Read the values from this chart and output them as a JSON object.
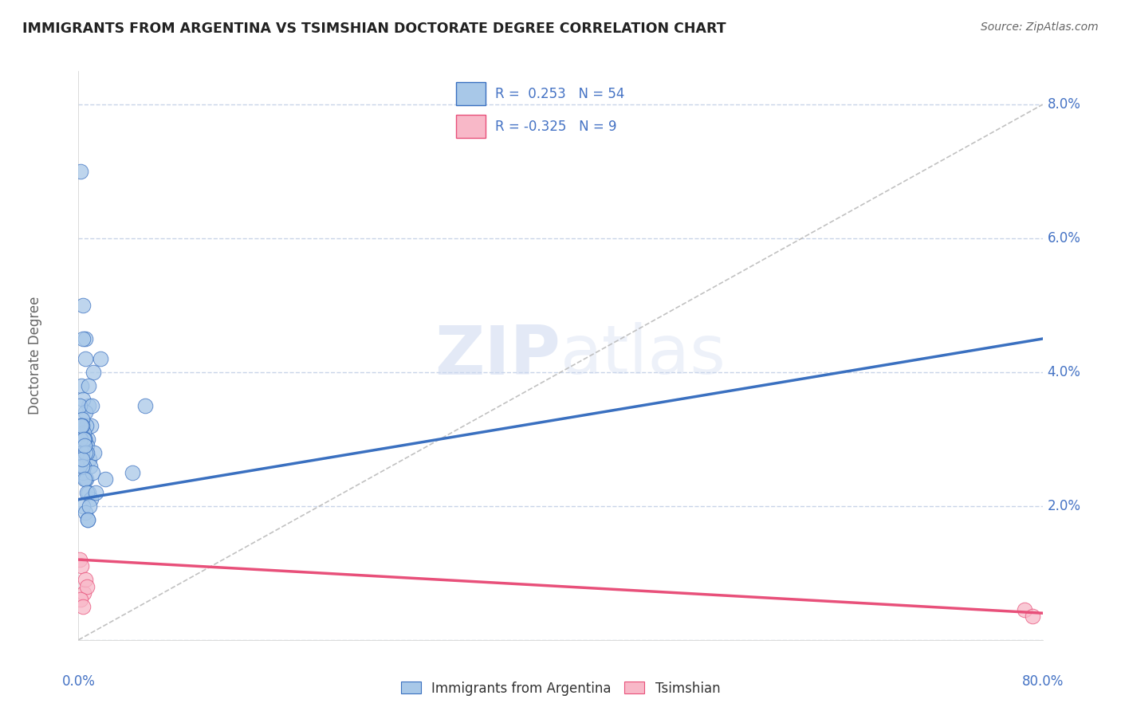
{
  "title": "IMMIGRANTS FROM ARGENTINA VS TSIMSHIAN DOCTORATE DEGREE CORRELATION CHART",
  "source": "Source: ZipAtlas.com",
  "ylabel": "Doctorate Degree",
  "legend_label1": "Immigrants from Argentina",
  "legend_label2": "Tsimshian",
  "R1": 0.253,
  "N1": 54,
  "R2": -0.325,
  "N2": 9,
  "blue_color": "#a8c8e8",
  "blue_line_color": "#3a70c0",
  "pink_color": "#f8b8c8",
  "pink_line_color": "#e8507a",
  "blue_dots_x": [
    0.15,
    0.4,
    0.6,
    0.8,
    1.0,
    0.25,
    0.35,
    0.55,
    0.65,
    0.75,
    1.2,
    1.8,
    0.1,
    0.3,
    0.45,
    0.7,
    0.9,
    1.3,
    0.2,
    0.5,
    0.35,
    0.6,
    0.85,
    1.1,
    0.28,
    0.48,
    0.72,
    0.95,
    0.55,
    0.38,
    0.18,
    0.28,
    0.45,
    0.62,
    0.82,
    1.05,
    0.38,
    0.58,
    0.78,
    1.15,
    0.22,
    0.42,
    0.58,
    0.32,
    0.52,
    0.68,
    0.92,
    0.75,
    1.4,
    2.2,
    0.28,
    4.5,
    5.5,
    0.48
  ],
  "blue_dots_y": [
    7.0,
    5.0,
    4.5,
    3.5,
    3.2,
    3.8,
    3.6,
    3.4,
    3.2,
    3.0,
    4.0,
    4.2,
    3.5,
    3.3,
    3.1,
    2.9,
    2.7,
    2.8,
    3.2,
    3.0,
    4.5,
    4.2,
    3.8,
    3.5,
    3.2,
    3.0,
    2.8,
    2.6,
    2.4,
    2.5,
    3.0,
    2.8,
    2.6,
    2.4,
    2.2,
    2.1,
    2.0,
    1.9,
    1.8,
    2.5,
    3.2,
    3.0,
    2.8,
    2.6,
    2.4,
    2.2,
    2.0,
    1.8,
    2.2,
    2.4,
    2.7,
    2.5,
    3.5,
    2.9
  ],
  "pink_dots_x": [
    0.1,
    0.25,
    0.45,
    0.55,
    0.7,
    0.15,
    0.35,
    78.5,
    79.2
  ],
  "pink_dots_y": [
    1.2,
    1.1,
    0.7,
    0.9,
    0.8,
    0.6,
    0.5,
    0.45,
    0.35
  ],
  "blue_line_x0": 0.0,
  "blue_line_y0": 2.1,
  "blue_line_x1": 80.0,
  "blue_line_y1": 4.5,
  "pink_line_x0": 0.0,
  "pink_line_y0": 1.2,
  "pink_line_x1": 80.0,
  "pink_line_y1": 0.4,
  "diag_x0": 0.0,
  "diag_y0": 0.0,
  "diag_x1": 80.0,
  "diag_y1": 8.0,
  "xmin": 0.0,
  "xmax": 80.0,
  "ymin": 0.0,
  "ymax": 8.5,
  "yticks": [
    0.0,
    2.0,
    4.0,
    6.0,
    8.0
  ],
  "xticks": [
    0.0,
    10.0,
    20.0,
    30.0,
    40.0,
    50.0,
    60.0,
    70.0,
    80.0
  ],
  "grid_color": "#c8d4e8",
  "bg_color": "#ffffff",
  "title_color": "#222222",
  "source_color": "#666666",
  "tick_label_color": "#4472c4",
  "ylabel_color": "#666666"
}
